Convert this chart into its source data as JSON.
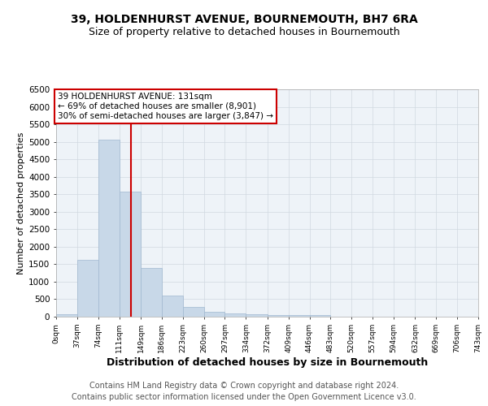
{
  "title1": "39, HOLDENHURST AVENUE, BOURNEMOUTH, BH7 6RA",
  "title2": "Size of property relative to detached houses in Bournemouth",
  "xlabel": "Distribution of detached houses by size in Bournemouth",
  "ylabel": "Number of detached properties",
  "footer1": "Contains HM Land Registry data © Crown copyright and database right 2024.",
  "footer2": "Contains public sector information licensed under the Open Government Licence v3.0.",
  "bar_left_edges": [
    0,
    37,
    74,
    111,
    149,
    186,
    223,
    260,
    297,
    334,
    372,
    409,
    446,
    483,
    520,
    557,
    594,
    632,
    669,
    706
  ],
  "bar_widths": [
    37,
    37,
    37,
    38,
    37,
    37,
    37,
    37,
    37,
    38,
    37,
    37,
    37,
    37,
    37,
    37,
    38,
    37,
    37,
    37
  ],
  "bar_heights": [
    75,
    1620,
    5060,
    3570,
    1390,
    610,
    290,
    150,
    95,
    60,
    50,
    50,
    55,
    0,
    0,
    0,
    0,
    0,
    0,
    0
  ],
  "bar_color": "#c8d8e8",
  "bar_edge_color": "#a0b8d0",
  "vline_x": 131,
  "vline_color": "#cc0000",
  "annotation_text": "39 HOLDENHURST AVENUE: 131sqm\n← 69% of detached houses are smaller (8,901)\n30% of semi-detached houses are larger (3,847) →",
  "annotation_box_color": "#cc0000",
  "annotation_text_color": "#000000",
  "xlim": [
    0,
    743
  ],
  "ylim": [
    0,
    6500
  ],
  "xtick_labels": [
    "0sqm",
    "37sqm",
    "74sqm",
    "111sqm",
    "149sqm",
    "186sqm",
    "223sqm",
    "260sqm",
    "297sqm",
    "334sqm",
    "372sqm",
    "409sqm",
    "446sqm",
    "483sqm",
    "520sqm",
    "557sqm",
    "594sqm",
    "632sqm",
    "669sqm",
    "706sqm",
    "743sqm"
  ],
  "xtick_positions": [
    0,
    37,
    74,
    111,
    149,
    186,
    223,
    260,
    297,
    334,
    372,
    409,
    446,
    483,
    520,
    557,
    594,
    632,
    669,
    706,
    743
  ],
  "ytick_positions": [
    0,
    500,
    1000,
    1500,
    2000,
    2500,
    3000,
    3500,
    4000,
    4500,
    5000,
    5500,
    6000,
    6500
  ],
  "grid_color": "#d0d8e0",
  "bg_color": "#eef3f8",
  "title1_fontsize": 10,
  "title2_fontsize": 9,
  "xlabel_fontsize": 9,
  "ylabel_fontsize": 8,
  "footer_fontsize": 7,
  "annotation_fontsize": 7.5
}
